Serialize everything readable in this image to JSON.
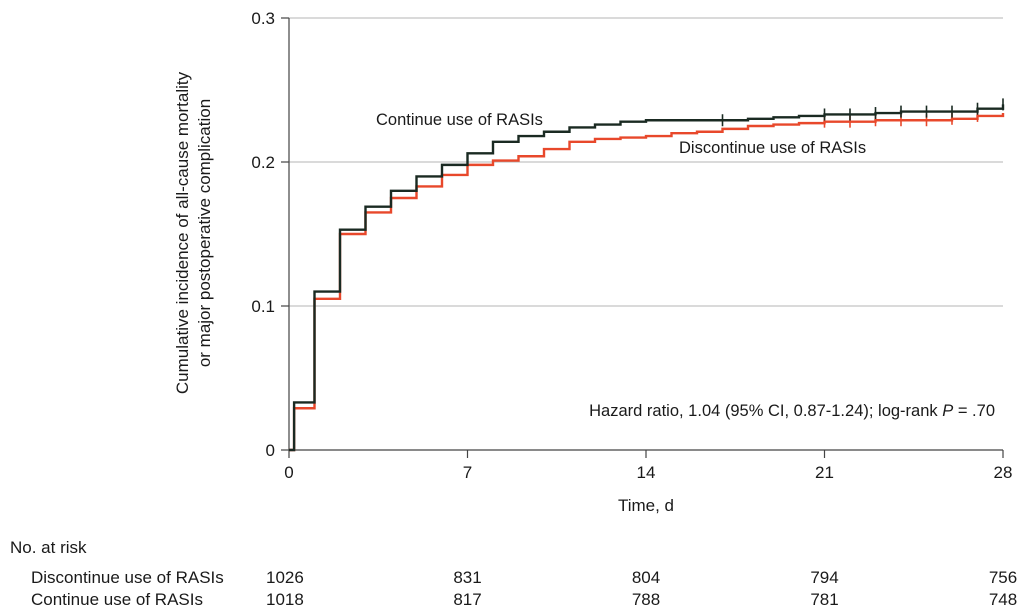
{
  "chart_data": {
    "type": "line",
    "step": true,
    "title": "",
    "xlabel": "Time, d",
    "ylabel_lines": [
      "Cumulative incidence of all-cause mortality",
      "or major postoperative complication"
    ],
    "xlim": [
      0,
      28
    ],
    "ylim": [
      0,
      0.3
    ],
    "xticks": [
      0,
      7,
      14,
      21,
      28
    ],
    "xtick_labels": [
      "0",
      "7",
      "14",
      "21",
      "28"
    ],
    "yticks": [
      0,
      0.1,
      0.2,
      0.3
    ],
    "ytick_labels": [
      "0",
      "0.1",
      "0.2",
      "0.3"
    ],
    "grid": "horizontal",
    "series": [
      {
        "name": "Discontinue use of RASIs",
        "color": "#e8482b",
        "x": [
          0,
          0.2,
          1,
          2,
          3,
          4,
          5,
          6,
          7,
          8,
          9,
          10,
          11,
          12,
          13,
          14,
          15,
          16,
          17,
          18,
          19,
          20,
          21,
          22,
          23,
          24,
          25,
          26,
          27,
          28
        ],
        "y": [
          0,
          0.029,
          0.105,
          0.15,
          0.165,
          0.175,
          0.183,
          0.191,
          0.198,
          0.201,
          0.204,
          0.209,
          0.214,
          0.216,
          0.217,
          0.218,
          0.22,
          0.221,
          0.223,
          0.225,
          0.226,
          0.227,
          0.228,
          0.228,
          0.229,
          0.229,
          0.229,
          0.23,
          0.232,
          0.234
        ],
        "censor_x": [
          21,
          22,
          23,
          24,
          25,
          26,
          27
        ]
      },
      {
        "name": "Continue use of RASIs",
        "color": "#1a2a22",
        "x": [
          0,
          0.2,
          1,
          2,
          3,
          4,
          5,
          6,
          7,
          8,
          9,
          10,
          11,
          12,
          13,
          14,
          15,
          16,
          17,
          18,
          19,
          20,
          21,
          22,
          23,
          24,
          25,
          26,
          27,
          28
        ],
        "y": [
          0,
          0.033,
          0.11,
          0.153,
          0.169,
          0.18,
          0.19,
          0.198,
          0.206,
          0.214,
          0.218,
          0.221,
          0.224,
          0.226,
          0.228,
          0.229,
          0.229,
          0.229,
          0.229,
          0.23,
          0.231,
          0.232,
          0.233,
          0.233,
          0.234,
          0.235,
          0.235,
          0.235,
          0.237,
          0.24
        ],
        "censor_x": [
          17,
          21,
          22,
          23,
          24,
          25,
          26,
          27,
          28
        ]
      }
    ],
    "series_labels": [
      {
        "series": "Continue use of RASIs",
        "text": "Continue use of RASIs"
      },
      {
        "series": "Discontinue use of RASIs",
        "text": "Discontinue use of RASIs"
      }
    ],
    "annotation": {
      "prefix": "Hazard ratio, 1.04 (95% CI, 0.87-1.24); log-rank ",
      "italic": "P",
      "suffix": " = .70"
    },
    "risk_table": {
      "header": "No. at risk",
      "timepoints": [
        0,
        7,
        14,
        21,
        28
      ],
      "rows": [
        {
          "label": "Discontinue use of RASIs",
          "values": [
            "1026",
            "831",
            "804",
            "794",
            "756"
          ]
        },
        {
          "label": "Continue use of RASIs",
          "values": [
            "1018",
            "817",
            "788",
            "781",
            "748"
          ]
        }
      ]
    }
  }
}
